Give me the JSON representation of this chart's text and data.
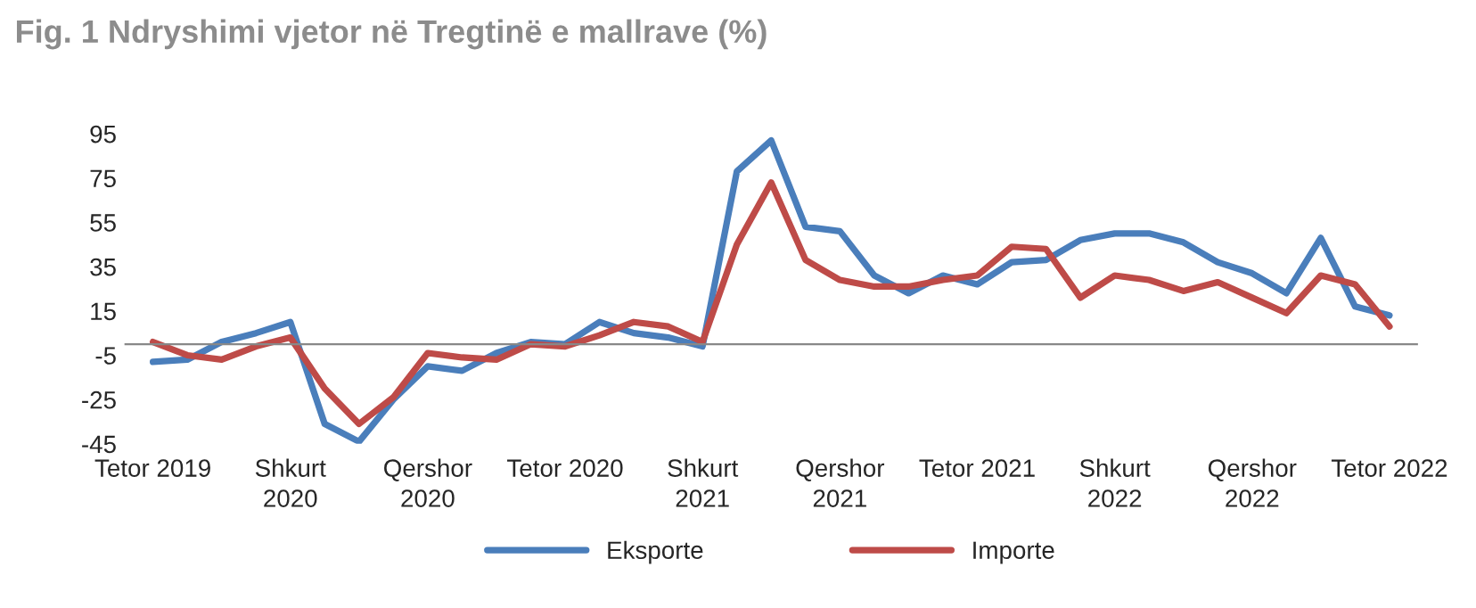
{
  "chart_data": {
    "type": "line",
    "title": "Fig. 1 Ndryshimi vjetor në Tregtinë e mallrave (%)",
    "categories": [
      "Tetor 2019",
      null,
      null,
      null,
      "Shkurt\n2020",
      null,
      null,
      null,
      "Qershor\n2020",
      null,
      null,
      null,
      "Tetor 2020",
      null,
      null,
      null,
      "Shkurt\n2021",
      null,
      null,
      null,
      "Qershor\n2021",
      null,
      null,
      null,
      "Tetor 2021",
      null,
      null,
      null,
      "Shkurt\n2022",
      null,
      null,
      null,
      "Qershor\n2022",
      null,
      null,
      null,
      "Tetor 2022"
    ],
    "series": [
      {
        "name": "Eksporte",
        "color": "#4a7ebb",
        "values": [
          -8,
          -7,
          1,
          5,
          10,
          -36,
          -44,
          -25,
          -10,
          -12,
          -4,
          1,
          0,
          10,
          5,
          3,
          -1,
          78,
          92,
          53,
          51,
          31,
          23,
          31,
          27,
          37,
          38,
          47,
          50,
          50,
          46,
          37,
          32,
          23,
          48,
          17,
          13
        ]
      },
      {
        "name": "Importe",
        "color": "#be4b48",
        "values": [
          1,
          -5,
          -7,
          -1,
          3,
          -20,
          -36,
          -24,
          -4,
          -6,
          -7,
          0,
          -1,
          4,
          10,
          8,
          1,
          45,
          73,
          38,
          29,
          26,
          26,
          29,
          31,
          44,
          43,
          21,
          31,
          29,
          24,
          28,
          21,
          14,
          31,
          27,
          8
        ]
      }
    ],
    "ylim": [
      -45,
      95
    ],
    "yticks": [
      -45,
      -25,
      -5,
      15,
      35,
      55,
      75,
      95
    ],
    "grid": false,
    "legend": "bottom",
    "marker": "none",
    "line_style": "solid"
  }
}
